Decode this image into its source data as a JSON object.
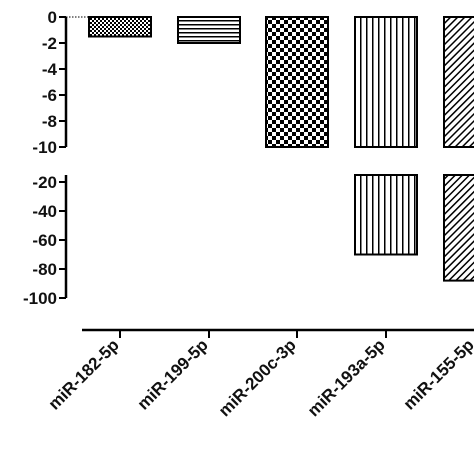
{
  "chart_data": {
    "type": "bar",
    "title": "",
    "xlabel": "",
    "ylabel": "",
    "categories": [
      "miR-182-5p",
      "miR-199-5p",
      "miR-200c-3p",
      "miR-193a-5p",
      "miR-155-5p"
    ],
    "values": [
      -1.5,
      -2,
      -15,
      -70,
      -88
    ],
    "patterns": [
      "checker-fine",
      "horizontal-lines",
      "checker-coarse",
      "vertical-lines",
      "diagonal-lines"
    ],
    "axis_break": true,
    "segments": [
      {
        "ylim": [
          -10,
          0
        ],
        "ticks": [
          0,
          -2,
          -4,
          -6,
          -8,
          -10
        ]
      },
      {
        "ylim": [
          -100,
          -10
        ],
        "ticks": [
          -20,
          -40,
          -60,
          -80,
          -100
        ]
      }
    ],
    "tick_labels_upper": [
      "0",
      "-2",
      "-4",
      "-6",
      "-8",
      "-10"
    ],
    "tick_labels_lower": [
      "-20",
      "-40",
      "-60",
      "-80",
      "-100"
    ],
    "grid": false,
    "colors": {
      "bar_stroke": "#000000",
      "pattern": "#000000",
      "background": "#ffffff"
    }
  }
}
